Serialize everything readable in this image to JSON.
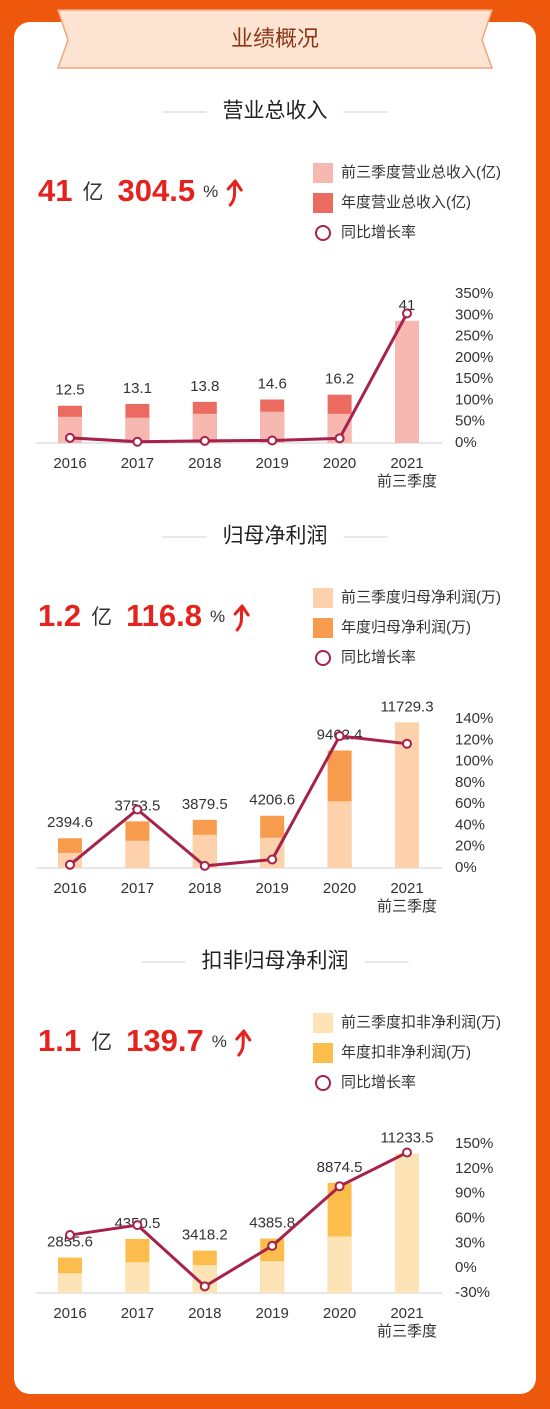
{
  "header": {
    "title": "业绩概况"
  },
  "chart_data": [
    {
      "type": "bar",
      "title": "营业总收入",
      "headline": {
        "value": 41,
        "unit": "亿",
        "growth": 304.5,
        "growth_unit": "%"
      },
      "categories": [
        "2016",
        "2017",
        "2018",
        "2019",
        "2020",
        "2021"
      ],
      "category_notes": [
        null,
        null,
        null,
        null,
        null,
        "前三季度"
      ],
      "series": [
        {
          "name": "前三季度营业总收入(亿)",
          "color": "#f6b8b1",
          "values": [
            8.8,
            8.5,
            9.8,
            10.5,
            9.8,
            41
          ]
        },
        {
          "name": "年度营业总收入(亿)",
          "color": "#ec6b61",
          "values": [
            12.5,
            13.1,
            13.8,
            14.6,
            16.2,
            null
          ]
        },
        {
          "name": "同比增长率",
          "type": "line",
          "axis": "y2",
          "color": "#a6224b",
          "values": [
            12,
            3,
            5,
            6,
            11,
            304.5
          ]
        }
      ],
      "ylim": [
        0,
        50
      ],
      "y2lim": [
        0,
        350
      ],
      "y2ticks": [
        {
          "value": 0,
          "label": "0%"
        },
        {
          "value": 50,
          "label": "50%"
        },
        {
          "value": 100,
          "label": "100%"
        },
        {
          "value": 150,
          "label": "150%"
        },
        {
          "value": 200,
          "label": "200%"
        },
        {
          "value": 250,
          "label": "250%"
        },
        {
          "value": 300,
          "label": "300%"
        },
        {
          "value": 350,
          "label": "350%"
        }
      ]
    },
    {
      "type": "bar",
      "title": "归母净利润",
      "headline": {
        "value": 1.2,
        "unit": "亿",
        "growth": 116.8,
        "growth_unit": "%"
      },
      "categories": [
        "2016",
        "2017",
        "2018",
        "2019",
        "2020",
        "2021"
      ],
      "category_notes": [
        null,
        null,
        null,
        null,
        null,
        "前三季度"
      ],
      "series": [
        {
          "name": "前三季度归母净利润(万)",
          "color": "#fdd1ac",
          "values": [
            1220,
            2200,
            2680,
            2440,
            5370,
            11729.3
          ]
        },
        {
          "name": "年度归母净利润(万)",
          "color": "#f79b4c",
          "values": [
            2394.6,
            3753.5,
            3879.5,
            4206.6,
            9462.4,
            null
          ]
        },
        {
          "name": "同比增长率",
          "type": "line",
          "axis": "y2",
          "color": "#a6224b",
          "values": [
            3,
            55,
            2,
            8,
            124,
            116.8
          ]
        }
      ],
      "ylim": [
        0,
        12000
      ],
      "y2lim": [
        0,
        140
      ],
      "y2ticks": [
        {
          "value": 0,
          "label": "0%"
        },
        {
          "value": 20,
          "label": "20%"
        },
        {
          "value": 40,
          "label": "40%"
        },
        {
          "value": 60,
          "label": "60%"
        },
        {
          "value": 80,
          "label": "80%"
        },
        {
          "value": 100,
          "label": "100%"
        },
        {
          "value": 120,
          "label": "120%"
        },
        {
          "value": 140,
          "label": "140%"
        }
      ]
    },
    {
      "type": "bar",
      "title": "扣非归母净利润",
      "headline": {
        "value": 1.1,
        "unit": "亿",
        "growth": 139.7,
        "growth_unit": "%"
      },
      "categories": [
        "2016",
        "2017",
        "2018",
        "2019",
        "2020",
        "2021"
      ],
      "category_notes": [
        null,
        null,
        null,
        null,
        null,
        "前三季度"
      ],
      "series": [
        {
          "name": "前三季度扣非净利润(万)",
          "color": "#fde3b5",
          "values": [
            1600,
            2480,
            2240,
            2560,
            4560,
            11233.5
          ]
        },
        {
          "name": "年度扣非净利润(万)",
          "color": "#fcbd4c",
          "values": [
            2855.6,
            4350.5,
            3418.2,
            4385.8,
            8874.5,
            null
          ]
        },
        {
          "name": "同比增长率",
          "type": "line",
          "axis": "y2",
          "color": "#a6224b",
          "values": [
            40,
            52,
            -22,
            27,
            99,
            139.7
          ]
        }
      ],
      "ylim": [
        0,
        12000
      ],
      "y2lim": [
        -30,
        150
      ],
      "y2ticks": [
        {
          "value": -30,
          "label": "-30%"
        },
        {
          "value": 0,
          "label": "0%"
        },
        {
          "value": 30,
          "label": "30%"
        },
        {
          "value": 60,
          "label": "60%"
        },
        {
          "value": 90,
          "label": "90%"
        },
        {
          "value": 120,
          "label": "120%"
        },
        {
          "value": 150,
          "label": "150%"
        }
      ]
    }
  ]
}
